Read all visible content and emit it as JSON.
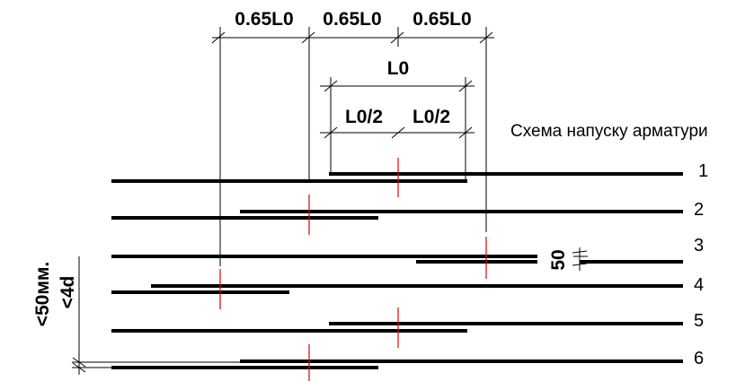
{
  "title": "Схема напуску арматури",
  "dimensions": {
    "spacing_1": "0.65L0",
    "spacing_2": "0.65L0",
    "spacing_3": "0.65L0",
    "lap_length": "L0",
    "half_left": "L0/2",
    "half_right": "L0/2",
    "bar_gap": "50",
    "vertical_clear": "<50мм.",
    "vertical_d": "<4d"
  },
  "rows": [
    {
      "label": "1"
    },
    {
      "label": "2"
    },
    {
      "label": "3"
    },
    {
      "label": "4"
    },
    {
      "label": "5"
    },
    {
      "label": "6"
    }
  ],
  "colors": {
    "bars": "#000000",
    "lap_centre_marks": "#e00000"
  }
}
